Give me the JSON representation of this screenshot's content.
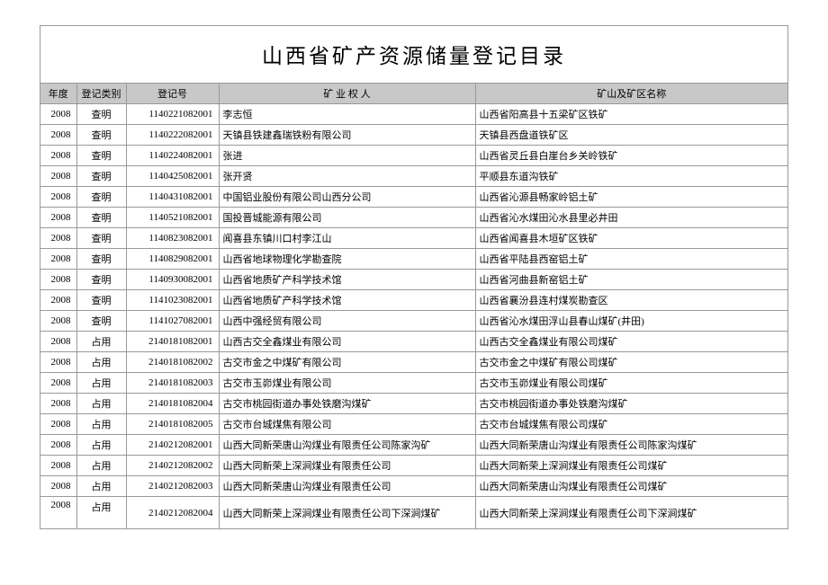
{
  "title": "山西省矿产资源储量登记目录",
  "headers": {
    "year": "年度",
    "type": "登记类别",
    "regno": "登记号",
    "owner": "矿 业 权 人",
    "area": "矿山及矿区名称"
  },
  "rows": [
    {
      "year": "2008",
      "type": "查明",
      "regno": "1140221082001",
      "owner": "李志恒",
      "area": "山西省阳高县十五梁矿区铁矿"
    },
    {
      "year": "2008",
      "type": "查明",
      "regno": "1140222082001",
      "owner": "天镇县铁建鑫瑞铁粉有限公司",
      "area": "天镇县西盘道铁矿区"
    },
    {
      "year": "2008",
      "type": "查明",
      "regno": "1140224082001",
      "owner": "张进",
      "area": "山西省灵丘县白崖台乡关岭铁矿"
    },
    {
      "year": "2008",
      "type": "查明",
      "regno": "1140425082001",
      "owner": "张开贤",
      "area": "平顺县东道沟铁矿"
    },
    {
      "year": "2008",
      "type": "查明",
      "regno": "1140431082001",
      "owner": "中国铝业股份有限公司山西分公司",
      "area": "山西省沁源县畅家岭铝土矿"
    },
    {
      "year": "2008",
      "type": "查明",
      "regno": "1140521082001",
      "owner": "国投晋城能源有限公司",
      "area": "山西省沁水煤田沁水县里必井田"
    },
    {
      "year": "2008",
      "type": "查明",
      "regno": "1140823082001",
      "owner": "闻喜县东镇川口村李江山",
      "area": "山西省闻喜县木垣矿区铁矿"
    },
    {
      "year": "2008",
      "type": "查明",
      "regno": "1140829082001",
      "owner": "山西省地球物理化学勘查院",
      "area": "山西省平陆县西窑铝土矿"
    },
    {
      "year": "2008",
      "type": "查明",
      "regno": "1140930082001",
      "owner": "山西省地质矿产科学技术馆",
      "area": "山西省河曲县新窑铝土矿"
    },
    {
      "year": "2008",
      "type": "查明",
      "regno": "1141023082001",
      "owner": "山西省地质矿产科学技术馆",
      "area": "山西省襄汾县连村煤炭勘查区"
    },
    {
      "year": "2008",
      "type": "查明",
      "regno": "1141027082001",
      "owner": "山西中强经贸有限公司",
      "area": "山西省沁水煤田浮山县春山煤矿(井田)"
    },
    {
      "year": "2008",
      "type": "占用",
      "regno": "2140181082001",
      "owner": "山西古交全鑫煤业有限公司",
      "area": "山西古交全鑫煤业有限公司煤矿"
    },
    {
      "year": "2008",
      "type": "占用",
      "regno": "2140181082002",
      "owner": "古交市金之中煤矿有限公司",
      "area": "古交市金之中煤矿有限公司煤矿"
    },
    {
      "year": "2008",
      "type": "占用",
      "regno": "2140181082003",
      "owner": "古交市玉峁煤业有限公司",
      "area": "古交市玉峁煤业有限公司煤矿"
    },
    {
      "year": "2008",
      "type": "占用",
      "regno": "2140181082004",
      "owner": "古交市桃园街道办事处铁磨沟煤矿",
      "area": "古交市桃园街道办事处铁磨沟煤矿"
    },
    {
      "year": "2008",
      "type": "占用",
      "regno": "2140181082005",
      "owner": "古交市台城煤焦有限公司",
      "area": "古交市台城煤焦有限公司煤矿"
    },
    {
      "year": "2008",
      "type": "占用",
      "regno": "2140212082001",
      "owner": "山西大同新荣唐山沟煤业有限责任公司陈家沟矿",
      "area": "山西大同新荣唐山沟煤业有限责任公司陈家沟煤矿"
    },
    {
      "year": "2008",
      "type": "占用",
      "regno": "2140212082002",
      "owner": "山西大同新荣上深涧煤业有限责任公司",
      "area": "山西大同新荣上深涧煤业有限责任公司煤矿"
    },
    {
      "year": "2008",
      "type": "占用",
      "regno": "2140212082003",
      "owner": "山西大同新荣唐山沟煤业有限责任公司",
      "area": "山西大同新荣唐山沟煤业有限责任公司煤矿"
    },
    {
      "year": "2008",
      "type": "占用",
      "regno": "2140212082004",
      "owner": "山西大同新荣上深涧煤业有限责任公司下深涧煤矿",
      "area": "山西大同新荣上深涧煤业有限责任公司下深涧煤矿",
      "tall": true
    }
  ]
}
